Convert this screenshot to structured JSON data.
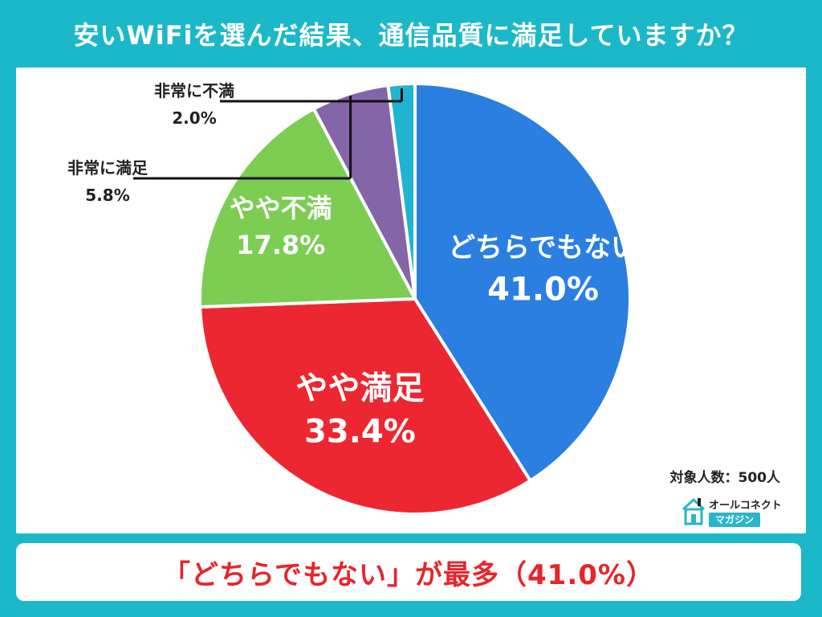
{
  "title": "安いWiFiを選んだ結果、通信品質に満足していますか？",
  "sample_size_text": "対象人数：500人",
  "logo": {
    "top_text": "オールコネクト",
    "bottom_text": "マガジン"
  },
  "conclusion_text": "「どちらでもない」が最多（41.0%）",
  "chart_data": {
    "type": "pie",
    "title": "安いWiFiを選んだ結果、通信品質に満足していますか？",
    "start": "12 o'clock",
    "direction": "clockwise",
    "slices": [
      {
        "label": "どちらでもない",
        "value": 41.0,
        "value_text": "41.0%",
        "color": "#2a7fe0",
        "label_placement": "inside"
      },
      {
        "label": "やや満足",
        "value": 33.4,
        "value_text": "33.4%",
        "color": "#ec2732",
        "label_placement": "inside"
      },
      {
        "label": "やや不満",
        "value": 17.8,
        "value_text": "17.8%",
        "color": "#7ccd52",
        "label_placement": "inside"
      },
      {
        "label": "非常に満足",
        "value": 5.8,
        "value_text": "5.8%",
        "color": "#8465a8",
        "label_placement": "outside"
      },
      {
        "label": "非常に不満",
        "value": 2.0,
        "value_text": "2.0%",
        "color": "#22b3d3",
        "label_placement": "outside"
      }
    ]
  }
}
